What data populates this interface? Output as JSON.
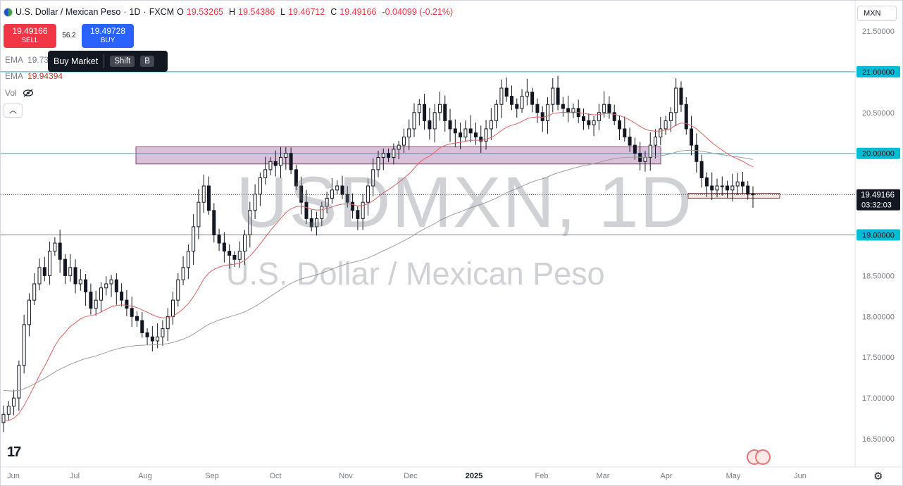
{
  "header": {
    "pair": "U.S. Dollar / Mexican Peso",
    "timeframe": "1D",
    "source": "FXCM",
    "open_label": "O",
    "open": "19.53265",
    "high_label": "H",
    "high": "19.54386",
    "low_label": "L",
    "low": "19.46712",
    "close_label": "C",
    "close": "19.49166",
    "change": "-0.04099 (-0.21%)"
  },
  "trade": {
    "sell_price": "19.49166",
    "sell_label": "SELL",
    "spread": "56.2",
    "buy_price": "19.49728",
    "buy_label": "BUY"
  },
  "tooltip": {
    "text": "Buy Market",
    "key1": "Shift",
    "key2": "B"
  },
  "legend": {
    "ema1_name": "EMA",
    "ema1_value": "19.73",
    "ema2_name": "EMA",
    "ema2_value": "19.94394",
    "vol_name": "Vol"
  },
  "collapse_icon": "chevron-up-icon",
  "currency": "MXN",
  "watermark": {
    "symbol": "USDMXN, 1D",
    "name": "U.S. Dollar / Mexican Peso"
  },
  "colors": {
    "up": "#131722",
    "down": "#131722",
    "ema_fast": "#e06060",
    "ema_slow": "#9e9e9e",
    "hline": "#00bcd4",
    "zone_fill": "#d9c2d9",
    "zone_border": "#7a4a6a",
    "support_fill": "#fbe4e4",
    "support_border": "#7a4a4a",
    "last_price_bg": "#131722"
  },
  "chart_data": {
    "type": "candlestick",
    "y_axis_labels": [
      "21.50000",
      "21.00000",
      "20.50000",
      "20.00000",
      "19.50000",
      "19.00000",
      "18.50000",
      "18.00000",
      "17.50000",
      "17.00000",
      "16.50000"
    ],
    "y_axis_values": [
      21.5,
      21.0,
      20.5,
      20.0,
      19.5,
      19.0,
      18.5,
      18.0,
      17.5,
      17.0,
      16.5
    ],
    "highlighted_levels": [
      {
        "value": 21.0,
        "label": "21.00000"
      },
      {
        "value": 20.0,
        "label": "20.00000"
      },
      {
        "value": 19.0,
        "label": "19.00000"
      }
    ],
    "last_price": {
      "value": 19.49166,
      "label": "19.49166",
      "countdown": "03:32:03"
    },
    "x_axis_labels": [
      "Jun",
      "Jul",
      "Aug",
      "Sep",
      "Oct",
      "Nov",
      "Dec",
      "2025",
      "Feb",
      "Mar",
      "Apr",
      "May",
      "Jun"
    ],
    "x_axis_bold": [
      "2025"
    ],
    "zones": [
      {
        "name": "resistance",
        "from_month": "Aug",
        "to_month": "Mar",
        "low": 19.87,
        "high": 20.08
      },
      {
        "name": "support",
        "from_month": "Apr",
        "to_month": "May",
        "low": 19.45,
        "high": 19.51
      }
    ],
    "closes": [
      16.8,
      16.9,
      17.0,
      17.4,
      17.9,
      18.2,
      18.4,
      18.6,
      18.5,
      18.8,
      18.9,
      18.7,
      18.5,
      18.6,
      18.4,
      18.45,
      18.3,
      18.1,
      18.2,
      18.35,
      18.4,
      18.45,
      18.3,
      18.2,
      18.1,
      18.0,
      17.95,
      17.8,
      17.75,
      17.7,
      17.75,
      17.85,
      18.0,
      18.2,
      18.45,
      18.6,
      18.8,
      19.1,
      19.4,
      19.6,
      19.3,
      19.0,
      18.9,
      18.8,
      18.75,
      18.7,
      18.8,
      19.0,
      19.3,
      19.5,
      19.7,
      19.8,
      19.9,
      19.85,
      19.95,
      20.0,
      19.8,
      19.6,
      19.4,
      19.2,
      19.1,
      19.2,
      19.35,
      19.45,
      19.55,
      19.6,
      19.5,
      19.4,
      19.3,
      19.2,
      19.4,
      19.6,
      19.8,
      19.95,
      20.0,
      19.95,
      20.05,
      20.1,
      20.2,
      20.3,
      20.5,
      20.6,
      20.4,
      20.3,
      20.5,
      20.6,
      20.4,
      20.3,
      20.25,
      20.2,
      20.3,
      20.25,
      20.2,
      20.15,
      20.3,
      20.4,
      20.6,
      20.8,
      20.7,
      20.6,
      20.55,
      20.7,
      20.75,
      20.6,
      20.5,
      20.4,
      20.6,
      20.8,
      20.6,
      20.55,
      20.5,
      20.55,
      20.45,
      20.4,
      20.35,
      20.4,
      20.5,
      20.6,
      20.5,
      20.4,
      20.3,
      20.2,
      20.1,
      20.0,
      19.9,
      19.95,
      20.1,
      20.2,
      20.3,
      20.4,
      20.5,
      20.8,
      20.6,
      20.3,
      20.1,
      19.9,
      19.7,
      19.6,
      19.55,
      19.6,
      19.6,
      19.55,
      19.6,
      19.65,
      19.6,
      19.5,
      19.49166
    ],
    "ema_fast_start": 16.7,
    "ema_slow_start": 17.1
  }
}
